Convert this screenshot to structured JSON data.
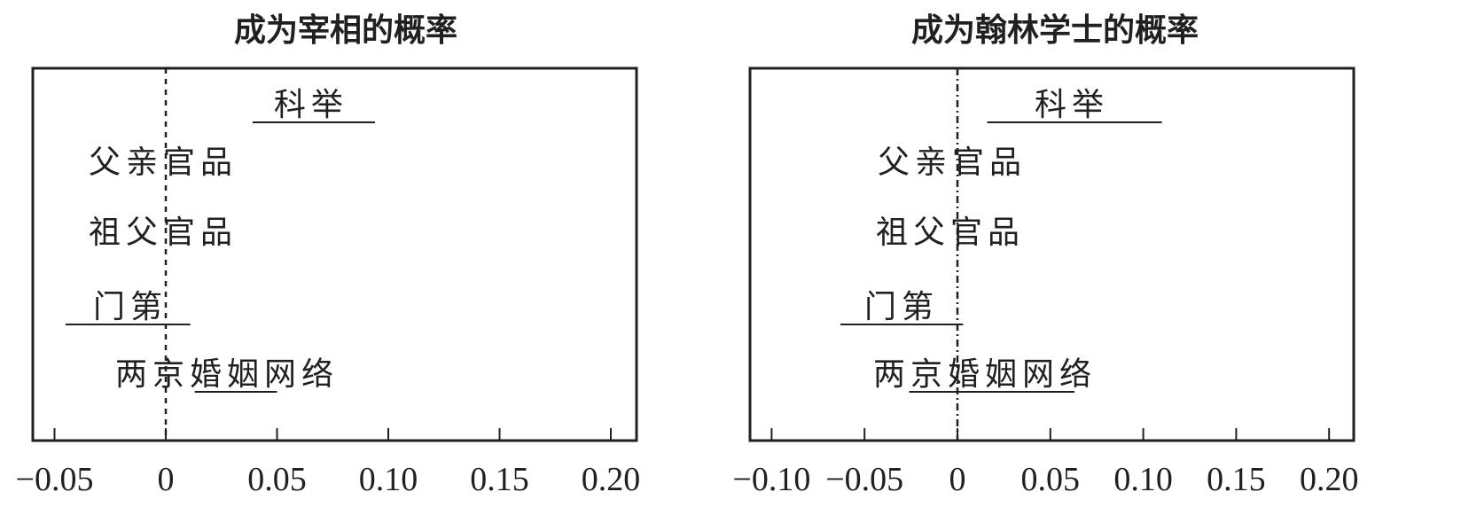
{
  "chart_data": [
    {
      "type": "coefficient-interval",
      "title": "成为宰相的概率",
      "xlim": [
        -0.06,
        0.211
      ],
      "xticks": [
        -0.05,
        0,
        0.05,
        0.1,
        0.15,
        0.2
      ],
      "xtick_labels": [
        "−0.05",
        "0",
        "0.05",
        "0.10",
        "0.15",
        "0.20"
      ],
      "reference_line": 0,
      "rows": [
        {
          "label": "科举",
          "interval": [
            0.039,
            0.094
          ]
        },
        {
          "label": "父亲官品",
          "interval": null
        },
        {
          "label": "祖父官品",
          "interval": null
        },
        {
          "label": "门第",
          "interval": [
            -0.045,
            0.011
          ]
        },
        {
          "label": "两京婚姻网络",
          "interval": [
            0.013,
            0.05
          ]
        }
      ]
    },
    {
      "type": "coefficient-interval",
      "title": "成为翰林学士的概率",
      "xlim": [
        -0.115,
        0.213
      ],
      "xticks": [
        -0.1,
        -0.05,
        0,
        0.05,
        0.1,
        0.15,
        0.2
      ],
      "xtick_labels": [
        "−0.10",
        "−0.05",
        "0",
        "0.05",
        "0.10",
        "0.15",
        "0.20"
      ],
      "reference_line": 0,
      "rows": [
        {
          "label": "科举",
          "interval": [
            0.016,
            0.11
          ]
        },
        {
          "label": "父亲官品",
          "interval": null
        },
        {
          "label": "祖父官品",
          "interval": null
        },
        {
          "label": "门第",
          "interval": [
            -0.063,
            0.003
          ]
        },
        {
          "label": "两京婚姻网络",
          "interval": [
            -0.026,
            0.063
          ]
        }
      ]
    }
  ]
}
